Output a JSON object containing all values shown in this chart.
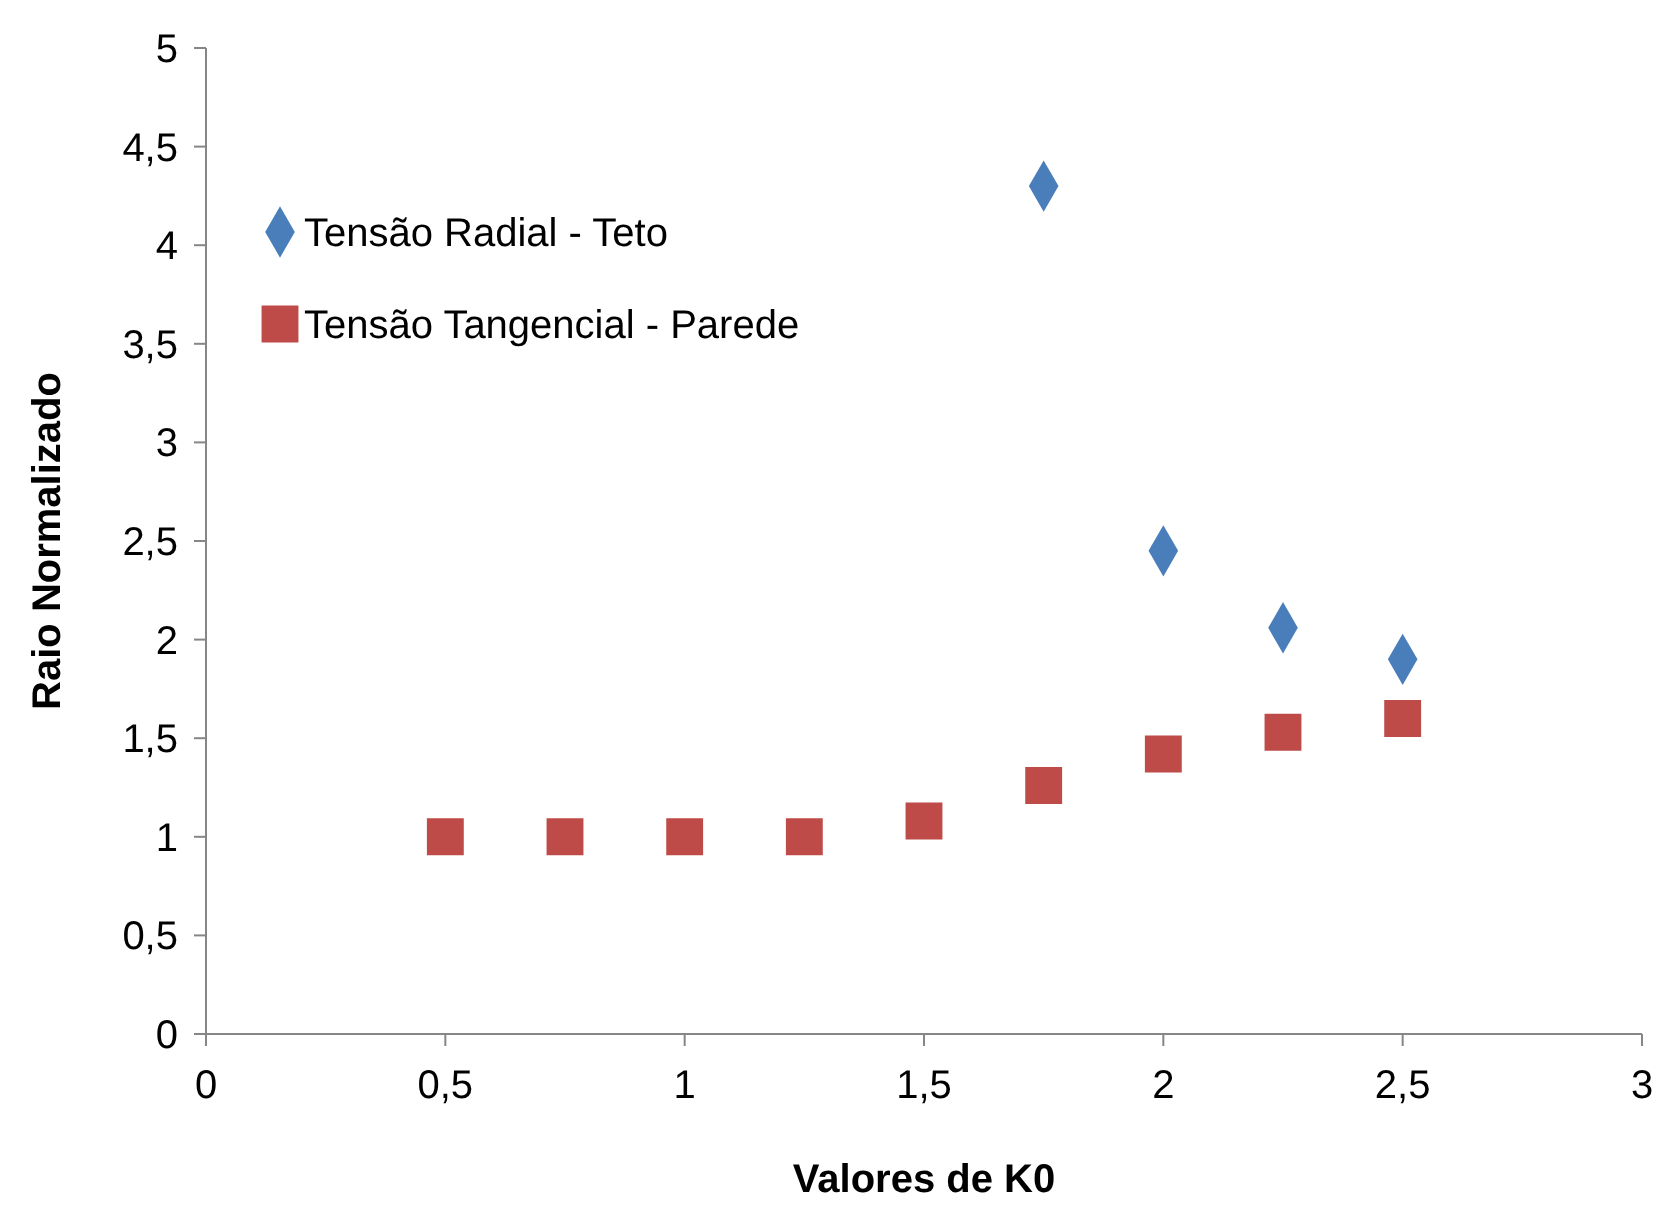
{
  "chart_data": {
    "type": "scatter",
    "xlabel": "Valores de K0",
    "ylabel": "Raio Normalizado",
    "legend": "top left",
    "grid": false,
    "xlim": [
      0,
      3
    ],
    "xticks": [
      0,
      {
        "value": 0.5,
        "label": "0,5"
      },
      1,
      {
        "value": 1.5,
        "label": "1,5"
      },
      2,
      {
        "value": 2.5,
        "label": "2,5"
      },
      3
    ],
    "ylim": [
      0,
      5
    ],
    "yticks": [
      0,
      {
        "value": 0.5,
        "label": "0,5"
      },
      1,
      {
        "value": 1.5,
        "label": "1,5"
      },
      2,
      {
        "value": 2.5,
        "label": "2,5"
      },
      3,
      {
        "value": 3.5,
        "label": "3,5"
      },
      4,
      {
        "value": 4.5,
        "label": "4,5"
      },
      5
    ],
    "series": [
      {
        "name": "Tensão Radial - Teto",
        "color": "#4a7ebb",
        "marker": "diamond",
        "x": [
          1.75,
          2,
          2.25,
          2.5
        ],
        "values": [
          4.3,
          2.45,
          2.06,
          1.9
        ]
      },
      {
        "name": "Tensão Tangencial - Parede",
        "color": "#be4b48",
        "marker": "square",
        "x": [
          0.5,
          0.75,
          1,
          1.25,
          1.5,
          1.75,
          2,
          2.25,
          2.5
        ],
        "values": [
          1,
          1,
          1,
          1,
          1.08,
          1.26,
          1.42,
          1.53,
          1.6
        ]
      }
    ]
  }
}
